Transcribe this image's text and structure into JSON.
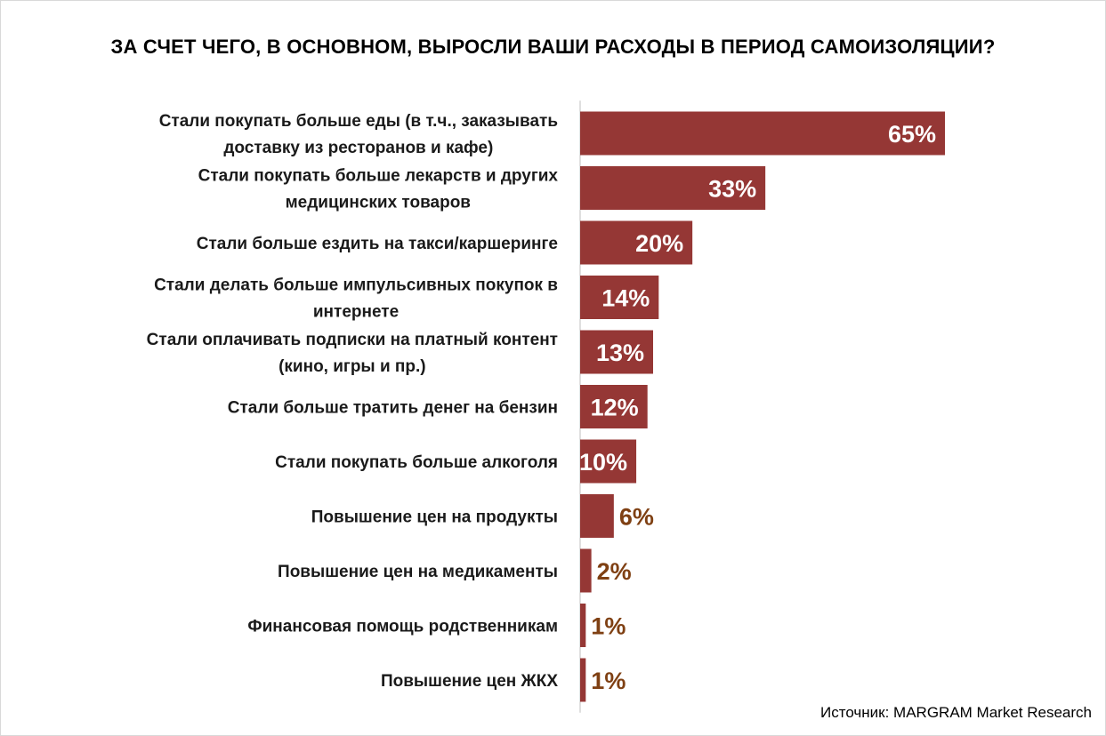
{
  "chart_data": {
    "type": "bar",
    "orientation": "horizontal",
    "title": "ЗА СЧЕТ ЧЕГО, В ОСНОВНОМ, ВЫРОСЛИ ВАШИ РАСХОДЫ В ПЕРИОД САМОИЗОЛЯЦИИ?",
    "categories": [
      [
        "Стали покупать больше еды (в т.ч., заказывать",
        "доставку из ресторанов и кафе)"
      ],
      [
        "Стали покупать больше лекарств и других",
        "медицинских товаров"
      ],
      [
        "Стали больше ездить на такси/каршеринге"
      ],
      [
        "Стали делать больше импульсивных покупок в",
        "интернете"
      ],
      [
        "Стали оплачивать подписки на платный контент",
        "(кино, игры и пр.)"
      ],
      [
        "Стали больше тратить денег на бензин"
      ],
      [
        "Стали покупать больше алкоголя"
      ],
      [
        "Повышение цен на продукты"
      ],
      [
        "Повышение цен на медикаменты"
      ],
      [
        "Финансовая помощь родственникам"
      ],
      [
        "Повышение цен ЖКХ"
      ]
    ],
    "values": [
      65,
      33,
      20,
      14,
      13,
      12,
      10,
      6,
      2,
      1,
      1
    ],
    "value_labels": [
      "65%",
      "33%",
      "20%",
      "14%",
      "13%",
      "12%",
      "10%",
      "6%",
      "2%",
      "1%",
      "1%"
    ],
    "unit": "%",
    "bar_color": "#953735",
    "label_color_inside": "#ffffff",
    "label_color_outside": "#7f4013",
    "grid": false,
    "legend": "none"
  },
  "source": "Источник: MARGRAM Market Research"
}
